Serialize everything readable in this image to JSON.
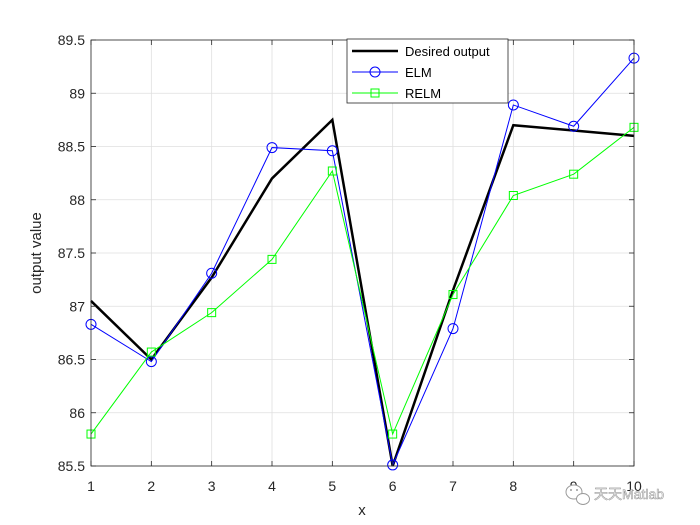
{
  "chart_data": {
    "type": "line",
    "xlabel": "x",
    "ylabel": "output value",
    "xlim": [
      1,
      10
    ],
    "ylim": [
      85.5,
      89.5
    ],
    "grid": true,
    "legend_position": "top-right",
    "x": [
      1,
      2,
      3,
      4,
      5,
      6,
      7,
      8,
      9,
      10
    ],
    "x_ticks": [
      "1",
      "2",
      "3",
      "4",
      "5",
      "6",
      "7",
      "8",
      "9",
      "10"
    ],
    "y_ticks": [
      "85.5",
      "86",
      "86.5",
      "87",
      "87.5",
      "88",
      "88.5",
      "89",
      "89.5"
    ],
    "series": [
      {
        "name": "Desired output",
        "color": "#000000",
        "marker": "none",
        "values": [
          87.05,
          86.5,
          87.27,
          88.2,
          88.75,
          85.5,
          87.15,
          88.7,
          88.65,
          88.6
        ]
      },
      {
        "name": "ELM",
        "color": "#0000ff",
        "marker": "circle",
        "values": [
          86.83,
          86.48,
          87.31,
          88.49,
          88.46,
          85.51,
          86.79,
          88.89,
          88.69,
          89.33
        ]
      },
      {
        "name": "RELM",
        "color": "#00ff00",
        "marker": "square",
        "values": [
          85.8,
          86.57,
          86.94,
          87.44,
          88.27,
          85.8,
          87.11,
          88.04,
          88.24,
          88.68
        ]
      }
    ]
  },
  "watermark": {
    "text": "天天Matlab",
    "icon": "wechat-icon"
  }
}
